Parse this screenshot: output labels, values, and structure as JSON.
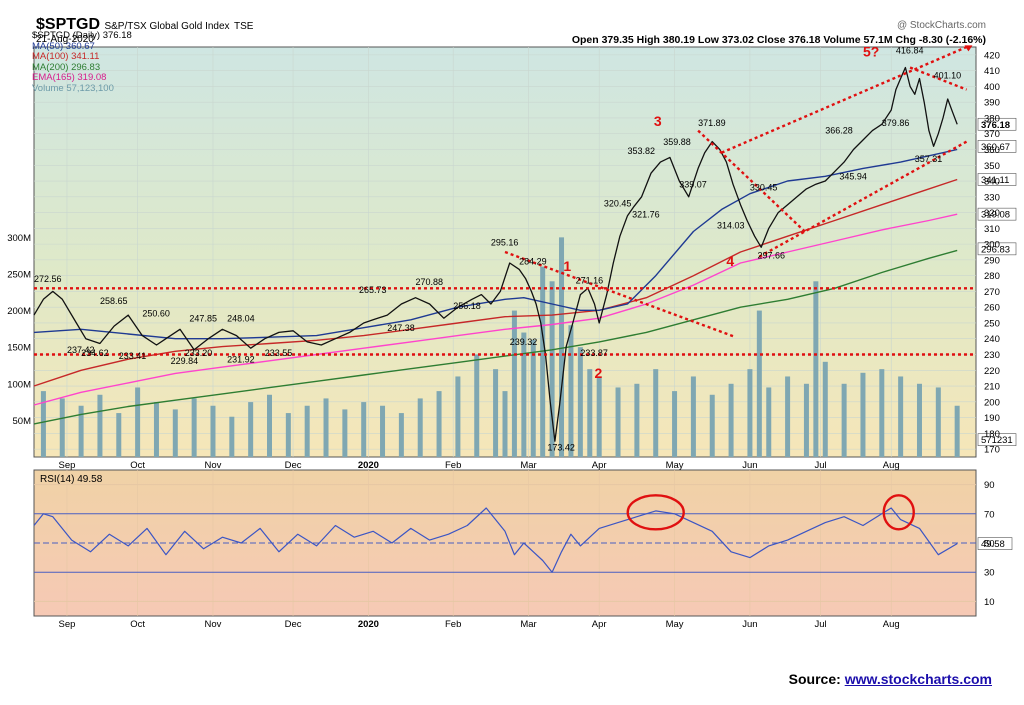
{
  "header": {
    "symbol": "$SPTGD",
    "name": "S&P/TSX Global Gold Index",
    "exchange": "TSE",
    "date": "21-Aug-2020",
    "watermark": "@ StockCharts.com",
    "ohlc": "Open 379.35  High 380.19  Low 373.02  Close 376.18  Volume 57.1M  Chg -8.30 (-2.16%)"
  },
  "legend": [
    {
      "text": "$SPTGD (Daily) 376.18",
      "color": "#000000"
    },
    {
      "text": "MA(50) 360.67",
      "color": "#1f3a93"
    },
    {
      "text": "MA(100) 341.11",
      "color": "#c62828"
    },
    {
      "text": "MA(200) 296.83",
      "color": "#2e7d32"
    },
    {
      "text": "EMA(165) 319.08",
      "color": "#d81b8c"
    },
    {
      "text": "Volume 57,123,100",
      "color": "#6c9aa8"
    }
  ],
  "rsi_label": "RSI(14) 49.58",
  "source": {
    "prefix": "Source:",
    "link": "www.stockcharts.com"
  },
  "colors": {
    "price": "#111111",
    "ma50": "#1f3a93",
    "ma100": "#c62828",
    "ma200": "#2e7d32",
    "ema165": "#ff44cc",
    "volume": "#7fa7b2",
    "rsi": "#3b55c4",
    "annotation": "#e01010"
  },
  "chart_data": [
    {
      "type": "line",
      "title": "$SPTGD S&P/TSX Global Gold Index TSE",
      "ylim": [
        165,
        425
      ],
      "price_ticks": [
        170,
        180,
        190,
        200,
        210,
        220,
        230,
        240,
        250,
        260,
        270,
        280,
        290,
        300,
        310,
        320,
        330,
        340,
        350,
        360,
        370,
        380,
        390,
        400,
        410,
        420
      ],
      "volume_ticks": [
        "50M",
        "100M",
        "150M",
        "200M",
        "250M",
        "300M"
      ],
      "volume_tick_values": [
        50,
        100,
        150,
        200,
        250,
        300
      ],
      "volume_ylim": [
        0,
        560
      ],
      "x_months": [
        "Sep",
        "Oct",
        "Nov",
        "Dec",
        "2020",
        "Feb",
        "Mar",
        "Apr",
        "May",
        "Jun",
        "Jul",
        "Aug"
      ],
      "x_month_pos": [
        0.035,
        0.11,
        0.19,
        0.275,
        0.355,
        0.445,
        0.525,
        0.6,
        0.68,
        0.76,
        0.835,
        0.91
      ],
      "price": {
        "t": [
          0,
          0.01,
          0.02,
          0.03,
          0.045,
          0.055,
          0.07,
          0.085,
          0.1,
          0.115,
          0.13,
          0.14,
          0.155,
          0.17,
          0.185,
          0.2,
          0.215,
          0.23,
          0.245,
          0.26,
          0.275,
          0.29,
          0.305,
          0.32,
          0.335,
          0.35,
          0.36,
          0.375,
          0.39,
          0.405,
          0.42,
          0.435,
          0.45,
          0.465,
          0.475,
          0.485,
          0.495,
          0.505,
          0.515,
          0.522,
          0.528,
          0.533,
          0.538,
          0.543,
          0.548,
          0.553,
          0.558,
          0.565,
          0.572,
          0.58,
          0.588,
          0.595,
          0.6,
          0.608,
          0.615,
          0.622,
          0.63,
          0.637,
          0.645,
          0.655,
          0.665,
          0.675,
          0.685,
          0.695,
          0.705,
          0.712,
          0.72,
          0.728,
          0.735,
          0.742,
          0.75,
          0.757,
          0.765,
          0.772,
          0.78,
          0.79,
          0.8,
          0.81,
          0.82,
          0.83,
          0.84,
          0.85,
          0.86,
          0.87,
          0.88,
          0.89,
          0.9,
          0.91,
          0.915,
          0.92,
          0.925,
          0.93,
          0.935,
          0.94,
          0.945,
          0.95,
          0.955,
          0.96,
          0.965,
          0.97,
          0.975,
          0.98
        ],
        "v": [
          255,
          265,
          270,
          265,
          250,
          240,
          237,
          248,
          255,
          242,
          236,
          240,
          246,
          233,
          240,
          246,
          242,
          234,
          240,
          244,
          245,
          238,
          236,
          240,
          244,
          250,
          252,
          255,
          262,
          266,
          262,
          253,
          260,
          265,
          268,
          262,
          270,
          288,
          284,
          278,
          270,
          262,
          250,
          230,
          200,
          175,
          198,
          235,
          250,
          268,
          272,
          262,
          250,
          268,
          288,
          305,
          318,
          324,
          330,
          345,
          352,
          355,
          340,
          330,
          348,
          358,
          365,
          360,
          352,
          338,
          325,
          315,
          305,
          298,
          310,
          320,
          325,
          330,
          335,
          338,
          340,
          346,
          352,
          360,
          366,
          372,
          376,
          385,
          398,
          405,
          412,
          400,
          395,
          405,
          390,
          372,
          362,
          370,
          380,
          392,
          384,
          376
        ]
      },
      "ma50": {
        "t": [
          0,
          0.05,
          0.1,
          0.15,
          0.2,
          0.25,
          0.3,
          0.35,
          0.4,
          0.45,
          0.5,
          0.52,
          0.55,
          0.58,
          0.6,
          0.63,
          0.66,
          0.7,
          0.73,
          0.76,
          0.8,
          0.84,
          0.88,
          0.92,
          0.95,
          0.98
        ],
        "v": [
          244,
          246,
          243,
          240,
          240,
          241,
          242,
          247,
          252,
          260,
          265,
          266,
          262,
          258,
          258,
          262,
          280,
          308,
          322,
          332,
          340,
          343,
          348,
          352,
          356,
          360
        ]
      },
      "ma100": {
        "t": [
          0,
          0.05,
          0.1,
          0.15,
          0.2,
          0.25,
          0.3,
          0.35,
          0.4,
          0.45,
          0.5,
          0.55,
          0.6,
          0.65,
          0.7,
          0.75,
          0.8,
          0.85,
          0.9,
          0.95,
          0.98
        ],
        "v": [
          210,
          220,
          227,
          232,
          235,
          237,
          239,
          242,
          246,
          250,
          254,
          255,
          258,
          266,
          280,
          295,
          305,
          315,
          325,
          335,
          341
        ]
      },
      "ema165": {
        "t": [
          0,
          0.05,
          0.1,
          0.15,
          0.2,
          0.25,
          0.3,
          0.35,
          0.4,
          0.45,
          0.5,
          0.55,
          0.6,
          0.65,
          0.7,
          0.75,
          0.8,
          0.85,
          0.9,
          0.95,
          0.98
        ],
        "v": [
          198,
          206,
          212,
          218,
          222,
          226,
          230,
          234,
          238,
          242,
          246,
          249,
          253,
          262,
          274,
          288,
          295,
          302,
          309,
          315,
          319
        ]
      },
      "ma200": {
        "t": [
          0,
          0.05,
          0.1,
          0.15,
          0.2,
          0.25,
          0.3,
          0.35,
          0.4,
          0.45,
          0.5,
          0.55,
          0.6,
          0.65,
          0.7,
          0.75,
          0.8,
          0.85,
          0.9,
          0.95,
          0.98
        ],
        "v": [
          186,
          192,
          197,
          201,
          205,
          209,
          213,
          217,
          221,
          225,
          229,
          233,
          238,
          244,
          252,
          260,
          265,
          272,
          282,
          291,
          296
        ]
      },
      "volume": {
        "t": [
          0.01,
          0.03,
          0.05,
          0.07,
          0.09,
          0.11,
          0.13,
          0.15,
          0.17,
          0.19,
          0.21,
          0.23,
          0.25,
          0.27,
          0.29,
          0.31,
          0.33,
          0.35,
          0.37,
          0.39,
          0.41,
          0.43,
          0.45,
          0.47,
          0.49,
          0.5,
          0.51,
          0.52,
          0.53,
          0.54,
          0.55,
          0.56,
          0.57,
          0.58,
          0.59,
          0.6,
          0.62,
          0.64,
          0.66,
          0.68,
          0.7,
          0.72,
          0.74,
          0.76,
          0.77,
          0.78,
          0.8,
          0.82,
          0.83,
          0.84,
          0.86,
          0.88,
          0.9,
          0.92,
          0.94,
          0.96,
          0.98
        ],
        "v": [
          90,
          80,
          70,
          85,
          60,
          95,
          75,
          65,
          80,
          70,
          55,
          75,
          85,
          60,
          70,
          80,
          65,
          75,
          70,
          60,
          80,
          90,
          110,
          140,
          120,
          90,
          200,
          170,
          160,
          260,
          240,
          300,
          180,
          150,
          120,
          110,
          95,
          100,
          120,
          90,
          110,
          85,
          100,
          120,
          200,
          95,
          110,
          100,
          240,
          130,
          100,
          115,
          120,
          110,
          100,
          95,
          70
        ]
      },
      "annotations": [
        {
          "text": "272.56",
          "t": 0.0,
          "v": 276
        },
        {
          "text": "258.65",
          "t": 0.07,
          "v": 262
        },
        {
          "text": "250.60",
          "t": 0.115,
          "v": 254
        },
        {
          "text": "247.85",
          "t": 0.165,
          "v": 251
        },
        {
          "text": "248.04",
          "t": 0.205,
          "v": 251
        },
        {
          "text": "265.73",
          "t": 0.345,
          "v": 269
        },
        {
          "text": "270.88",
          "t": 0.405,
          "v": 274
        },
        {
          "text": "256.18",
          "t": 0.445,
          "v": 259
        },
        {
          "text": "247.38",
          "t": 0.375,
          "v": 245
        },
        {
          "text": "295.16",
          "t": 0.485,
          "v": 299
        },
        {
          "text": "284.29",
          "t": 0.515,
          "v": 287
        },
        {
          "text": "271.16",
          "t": 0.575,
          "v": 275
        },
        {
          "text": "239.32",
          "t": 0.505,
          "v": 236
        },
        {
          "text": "233.87",
          "t": 0.58,
          "v": 229
        },
        {
          "text": "173.42",
          "t": 0.545,
          "v": 169
        },
        {
          "text": "237.42",
          "t": 0.035,
          "v": 231
        },
        {
          "text": "234.62",
          "t": 0.05,
          "v": 229
        },
        {
          "text": "233.41",
          "t": 0.09,
          "v": 227
        },
        {
          "text": "229.84",
          "t": 0.145,
          "v": 224
        },
        {
          "text": "233.20",
          "t": 0.16,
          "v": 229
        },
        {
          "text": "231.92",
          "t": 0.205,
          "v": 225
        },
        {
          "text": "233.55",
          "t": 0.245,
          "v": 229
        },
        {
          "text": "320.45",
          "t": 0.605,
          "v": 324
        },
        {
          "text": "353.82",
          "t": 0.63,
          "v": 357
        },
        {
          "text": "321.76",
          "t": 0.635,
          "v": 317
        },
        {
          "text": "359.88",
          "t": 0.668,
          "v": 363
        },
        {
          "text": "371.89",
          "t": 0.705,
          "v": 375
        },
        {
          "text": "339.07",
          "t": 0.685,
          "v": 336
        },
        {
          "text": "314.03",
          "t": 0.725,
          "v": 310
        },
        {
          "text": "330.45",
          "t": 0.76,
          "v": 334
        },
        {
          "text": "297.66",
          "t": 0.768,
          "v": 291
        },
        {
          "text": "366.28",
          "t": 0.84,
          "v": 370
        },
        {
          "text": "345.94",
          "t": 0.855,
          "v": 341
        },
        {
          "text": "379.86",
          "t": 0.9,
          "v": 375
        },
        {
          "text": "416.84",
          "t": 0.915,
          "v": 421
        },
        {
          "text": "401.10",
          "t": 0.955,
          "v": 405
        },
        {
          "text": "357.31",
          "t": 0.935,
          "v": 352
        }
      ],
      "wave_labels": [
        {
          "text": "1",
          "t": 0.562,
          "v": 283
        },
        {
          "text": "2",
          "t": 0.595,
          "v": 215
        },
        {
          "text": "3",
          "t": 0.658,
          "v": 375
        },
        {
          "text": "4",
          "t": 0.735,
          "v": 286
        },
        {
          "text": "5?",
          "t": 0.88,
          "v": 419
        }
      ],
      "right_tags": [
        {
          "text": "376.18",
          "v": 376
        },
        {
          "text": "360.67",
          "v": 362
        },
        {
          "text": "341.11",
          "v": 341
        },
        {
          "text": "319.08",
          "v": 319
        },
        {
          "text": "296.83",
          "v": 297
        },
        {
          "text": "571231",
          "v": 176
        }
      ]
    },
    {
      "type": "line",
      "title": "RSI(14) 49.58",
      "ylim": [
        0,
        100
      ],
      "yticks": [
        10,
        30,
        50,
        70,
        90
      ],
      "t": [
        0,
        0.01,
        0.02,
        0.04,
        0.06,
        0.08,
        0.1,
        0.12,
        0.14,
        0.16,
        0.18,
        0.2,
        0.22,
        0.24,
        0.26,
        0.28,
        0.3,
        0.32,
        0.34,
        0.36,
        0.38,
        0.4,
        0.42,
        0.44,
        0.46,
        0.48,
        0.5,
        0.51,
        0.52,
        0.53,
        0.54,
        0.55,
        0.56,
        0.57,
        0.58,
        0.6,
        0.62,
        0.64,
        0.66,
        0.68,
        0.7,
        0.72,
        0.74,
        0.76,
        0.78,
        0.8,
        0.82,
        0.84,
        0.86,
        0.88,
        0.9,
        0.91,
        0.92,
        0.94,
        0.96,
        0.98
      ],
      "v": [
        62,
        70,
        68,
        52,
        44,
        56,
        48,
        60,
        42,
        58,
        46,
        54,
        50,
        60,
        44,
        56,
        48,
        62,
        54,
        58,
        50,
        60,
        52,
        56,
        62,
        74,
        58,
        42,
        50,
        44,
        38,
        30,
        44,
        56,
        48,
        60,
        64,
        68,
        72,
        70,
        64,
        58,
        44,
        40,
        48,
        52,
        58,
        64,
        68,
        62,
        70,
        74,
        66,
        60,
        42,
        49.58
      ],
      "current_label": "49.58",
      "highlighted_regions": [
        {
          "t": 0.66
        },
        {
          "t": 0.918
        }
      ]
    }
  ]
}
